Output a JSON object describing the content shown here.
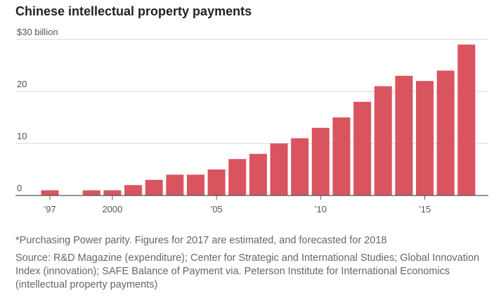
{
  "chart_data": {
    "type": "bar",
    "title": "Chinese intellectual property payments",
    "unit_label": "$30 billion",
    "x": [
      1997,
      1998,
      1999,
      2000,
      2001,
      2002,
      2003,
      2004,
      2005,
      2006,
      2007,
      2008,
      2009,
      2010,
      2011,
      2012,
      2013,
      2014,
      2015,
      2016,
      2017
    ],
    "values": [
      1,
      0,
      1,
      1,
      2,
      3,
      4,
      4,
      5,
      7,
      8,
      10,
      11,
      13,
      15,
      18,
      21,
      23,
      22,
      24,
      29
    ],
    "ylim": [
      0,
      30
    ],
    "y_ticks": [
      {
        "value": 0,
        "label": "0"
      },
      {
        "value": 10,
        "label": "10"
      },
      {
        "value": 20,
        "label": "20"
      },
      {
        "value": 30,
        "label": "$30 billion"
      }
    ],
    "x_ticks": [
      {
        "value": 1997,
        "label": "’97"
      },
      {
        "value": 2000,
        "label": "2000"
      },
      {
        "value": 2005,
        "label": "’05"
      },
      {
        "value": 2010,
        "label": "’10"
      },
      {
        "value": 2015,
        "label": "’15"
      }
    ],
    "grid": true,
    "bar_color": "#d9545f"
  },
  "footnote": "*Purchasing Power parity. Figures for 2017 are estimated, and forecasted for 2018",
  "source": "Source: R&D Magazine (expenditure); Center for Strategic and International Studies; Global Innovation Index (innovation); SAFE Balance of Payment  via. Peterson Institute for International Economics (intellectual property payments)"
}
